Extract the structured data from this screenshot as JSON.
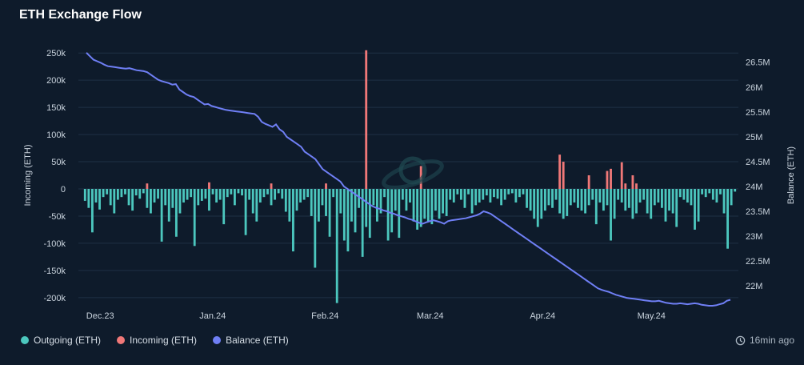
{
  "title": "ETH Exchange Flow",
  "updated": "16min ago",
  "colors": {
    "background": "#0e1b2b",
    "outgoing": "#4cc7be",
    "incoming": "#f07878",
    "balance": "#6f7ff5",
    "grid": "#1f3145"
  },
  "legend": [
    {
      "label": "Outgoing (ETH)",
      "color": "#4cc7be"
    },
    {
      "label": "Incoming (ETH)",
      "color": "#f07878"
    },
    {
      "label": "Balance (ETH)",
      "color": "#6f7ff5"
    }
  ],
  "chart_data": {
    "type": "bar",
    "title": "ETH Exchange Flow",
    "ylabel_left": "Incoming (ETH)",
    "ylabel_right": "Balance (ETH)",
    "ylim_left": [
      -215000,
      265000
    ],
    "ylim_right": [
      21600000,
      26850000
    ],
    "yticks_left": [
      "250k",
      "200k",
      "150k",
      "100k",
      "50k",
      "0",
      "-50k",
      "-100k",
      "-150k",
      "-200k"
    ],
    "yticks_left_values": [
      250000,
      200000,
      150000,
      100000,
      50000,
      0,
      -50000,
      -100000,
      -150000,
      -200000
    ],
    "yticks_right": [
      "26.5M",
      "26M",
      "25.5M",
      "25M",
      "24.5M",
      "24M",
      "23.5M",
      "23M",
      "22.5M",
      "22M"
    ],
    "yticks_right_values": [
      26500000,
      26000000,
      25500000,
      25000000,
      24500000,
      24000000,
      23500000,
      23000000,
      22500000,
      22000000
    ],
    "xticks": [
      {
        "label": "Dec.23",
        "day": 6
      },
      {
        "label": "Jan.24",
        "day": 37
      },
      {
        "label": "Feb.24",
        "day": 68
      },
      {
        "label": "Mar.24",
        "day": 97
      },
      {
        "label": "Apr.24",
        "day": 128
      },
      {
        "label": "May.24",
        "day": 158
      }
    ],
    "day_range": [
      0,
      182
    ],
    "grid": true,
    "legend_position": "bottom-left",
    "series": [
      {
        "name": "Outgoing (ETH)",
        "type": "bar",
        "values": [
          -22000,
          -35000,
          -80000,
          -25000,
          -38000,
          -15000,
          -10000,
          -30000,
          -45000,
          -20000,
          -15000,
          -10000,
          -30000,
          -40000,
          -12000,
          -18000,
          -8000,
          -35000,
          -45000,
          -25000,
          -18000,
          -97000,
          -30000,
          -60000,
          -35000,
          -88000,
          -45000,
          -25000,
          -20000,
          -15000,
          -105000,
          -30000,
          -22000,
          -18000,
          -40000,
          -10000,
          -25000,
          -20000,
          -65000,
          -15000,
          -10000,
          -30000,
          -8000,
          -12000,
          -85000,
          -20000,
          -45000,
          -60000,
          -25000,
          -15000,
          -10000,
          -30000,
          -20000,
          -8000,
          -18000,
          -42000,
          -60000,
          -115000,
          -40000,
          -25000,
          -20000,
          -15000,
          -50000,
          -145000,
          -60000,
          -30000,
          -50000,
          -88000,
          -15000,
          -210000,
          -45000,
          -95000,
          -115000,
          -60000,
          -80000,
          -35000,
          -125000,
          -70000,
          -90000,
          -30000,
          -60000,
          -45000,
          -15000,
          -95000,
          -80000,
          -40000,
          -90000,
          -20000,
          -40000,
          -25000,
          -60000,
          -75000,
          -70000,
          -55000,
          -60000,
          -65000,
          -40000,
          -55000,
          -45000,
          -50000,
          -20000,
          -25000,
          -10000,
          -20000,
          -35000,
          -10000,
          -45000,
          -30000,
          -25000,
          -20000,
          -12000,
          -25000,
          -15000,
          -18000,
          -30000,
          -20000,
          -10000,
          -8000,
          -25000,
          -15000,
          -10000,
          -35000,
          -40000,
          -55000,
          -70000,
          -55000,
          -40000,
          -30000,
          -35000,
          -20000,
          -45000,
          -55000,
          -50000,
          -30000,
          -25000,
          -35000,
          -40000,
          -45000,
          -30000,
          -20000,
          -65000,
          -25000,
          -40000,
          -30000,
          -95000,
          -55000,
          -20000,
          -25000,
          -40000,
          -35000,
          -55000,
          -45000,
          -25000,
          -20000,
          -45000,
          -55000,
          -30000,
          -25000,
          -35000,
          -60000,
          -40000,
          -45000,
          -70000,
          -15000,
          -20000,
          -25000,
          -30000,
          -75000,
          -60000,
          -10000,
          -15000,
          -8000,
          -20000,
          -25000,
          -10000,
          -45000,
          -110000,
          -30000,
          -5000
        ]
      },
      {
        "name": "Incoming (ETH)",
        "type": "bar",
        "values": [
          0,
          0,
          0,
          0,
          0,
          0,
          0,
          0,
          0,
          0,
          0,
          0,
          0,
          0,
          0,
          0,
          0,
          10000,
          0,
          0,
          0,
          0,
          0,
          0,
          0,
          0,
          0,
          0,
          0,
          0,
          0,
          0,
          0,
          0,
          12000,
          0,
          0,
          0,
          0,
          0,
          0,
          0,
          0,
          0,
          0,
          0,
          0,
          0,
          0,
          0,
          0,
          10000,
          0,
          0,
          0,
          0,
          0,
          0,
          0,
          0,
          0,
          0,
          0,
          0,
          0,
          0,
          10000,
          0,
          0,
          0,
          0,
          0,
          0,
          0,
          0,
          0,
          0,
          255000,
          0,
          0,
          0,
          0,
          0,
          0,
          0,
          0,
          0,
          0,
          0,
          0,
          0,
          0,
          42000,
          0,
          0,
          0,
          0,
          0,
          0,
          0,
          0,
          0,
          0,
          0,
          0,
          0,
          0,
          0,
          0,
          0,
          0,
          0,
          0,
          0,
          0,
          0,
          0,
          0,
          0,
          0,
          0,
          0,
          0,
          0,
          0,
          0,
          0,
          0,
          0,
          0,
          63000,
          50000,
          0,
          0,
          0,
          0,
          0,
          0,
          25000,
          0,
          0,
          0,
          0,
          33000,
          37000,
          0,
          0,
          49000,
          10000,
          0,
          25000,
          10000,
          0,
          0,
          0,
          0,
          0,
          0,
          0,
          0,
          0,
          0,
          0,
          0,
          0,
          0,
          0,
          0,
          0,
          0,
          0,
          0,
          0,
          0,
          0,
          0,
          0,
          0,
          0,
          0,
          0,
          0,
          0,
          0,
          0,
          0,
          0,
          0,
          0,
          0,
          0,
          0,
          0,
          0,
          0,
          0,
          0,
          0,
          0,
          0,
          0,
          0,
          0,
          0
        ]
      },
      {
        "name": "Balance (ETH)",
        "type": "line",
        "values": [
          26690000,
          26620000,
          26550000,
          26520000,
          26490000,
          26450000,
          26420000,
          26410000,
          26400000,
          26390000,
          26380000,
          26370000,
          26380000,
          26360000,
          26340000,
          26330000,
          26320000,
          26300000,
          26250000,
          26200000,
          26150000,
          26120000,
          26100000,
          26080000,
          26050000,
          26060000,
          25950000,
          25900000,
          25850000,
          25820000,
          25800000,
          25750000,
          25700000,
          25650000,
          25660000,
          25620000,
          25600000,
          25580000,
          25560000,
          25540000,
          25530000,
          25520000,
          25510000,
          25500000,
          25490000,
          25480000,
          25470000,
          25460000,
          25400000,
          25300000,
          25260000,
          25230000,
          25200000,
          25250000,
          25150000,
          25100000,
          25000000,
          24950000,
          24900000,
          24850000,
          24800000,
          24700000,
          24650000,
          24600000,
          24550000,
          24450000,
          24350000,
          24300000,
          24250000,
          24200000,
          24150000,
          24100000,
          24000000,
          23950000,
          23900000,
          23850000,
          23800000,
          23750000,
          23700000,
          23650000,
          23600000,
          23570000,
          23550000,
          23520000,
          23500000,
          23470000,
          23450000,
          23420000,
          23400000,
          23380000,
          23350000,
          23330000,
          23300000,
          23270000,
          23250000,
          23280000,
          23300000,
          23320000,
          23300000,
          23280000,
          23250000,
          23300000,
          23320000,
          23330000,
          23340000,
          23350000,
          23360000,
          23380000,
          23400000,
          23420000,
          23450000,
          23500000,
          23480000,
          23450000,
          23400000,
          23350000,
          23300000,
          23250000,
          23200000,
          23150000,
          23100000,
          23050000,
          23000000,
          22950000,
          22900000,
          22850000,
          22800000,
          22750000,
          22700000,
          22650000,
          22600000,
          22550000,
          22500000,
          22450000,
          22400000,
          22350000,
          22300000,
          22250000,
          22200000,
          22150000,
          22100000,
          22050000,
          22000000,
          21950000,
          21920000,
          21900000,
          21880000,
          21850000,
          21820000,
          21800000,
          21780000,
          21760000,
          21750000,
          21740000,
          21730000,
          21720000,
          21710000,
          21700000,
          21690000,
          21690000,
          21700000,
          21680000,
          21660000,
          21650000,
          21640000,
          21640000,
          21650000,
          21640000,
          21630000,
          21640000,
          21650000,
          21640000,
          21620000,
          21610000,
          21600000,
          21600000,
          21610000,
          21630000,
          21650000,
          21700000,
          21720000
        ]
      }
    ]
  }
}
